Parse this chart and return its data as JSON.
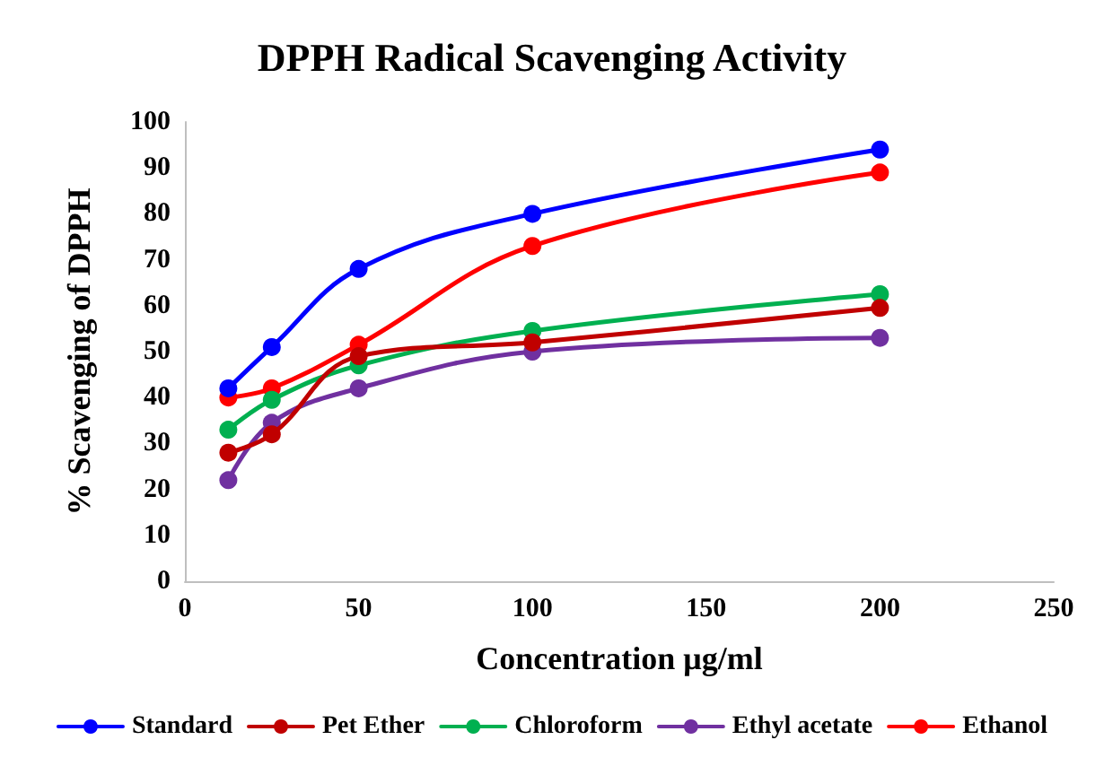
{
  "chart_data": {
    "type": "line",
    "title": "DPPH Radical Scavenging Activity",
    "xlabel": "Concentration μg/ml",
    "ylabel": "% Scavenging of DPPH",
    "x": [
      12.5,
      25,
      50,
      100,
      200
    ],
    "series": [
      {
        "name": "Standard",
        "color": "#0000ff",
        "values": [
          42,
          51,
          68,
          80,
          94
        ]
      },
      {
        "name": "Pet Ether",
        "color": "#c00000",
        "values": [
          28,
          32,
          49,
          52,
          59.5
        ]
      },
      {
        "name": "Chloroform",
        "color": "#00b050",
        "values": [
          33,
          39.5,
          47,
          54.5,
          62.5
        ]
      },
      {
        "name": "Ethyl acetate",
        "color": "#7030a0",
        "values": [
          22,
          34.5,
          42,
          50,
          53
        ]
      },
      {
        "name": "Ethanol",
        "color": "#ff0000",
        "values": [
          40,
          42,
          51.5,
          73,
          89
        ]
      }
    ],
    "xlim": [
      0,
      250
    ],
    "xticks": [
      0,
      50,
      100,
      150,
      200,
      250
    ],
    "ylim": [
      0,
      100
    ],
    "yticks": [
      0,
      10,
      20,
      30,
      40,
      50,
      60,
      70,
      80,
      90,
      100
    ],
    "grid": false,
    "legend": "bottom",
    "marker": "circle",
    "line_style": "solid"
  }
}
